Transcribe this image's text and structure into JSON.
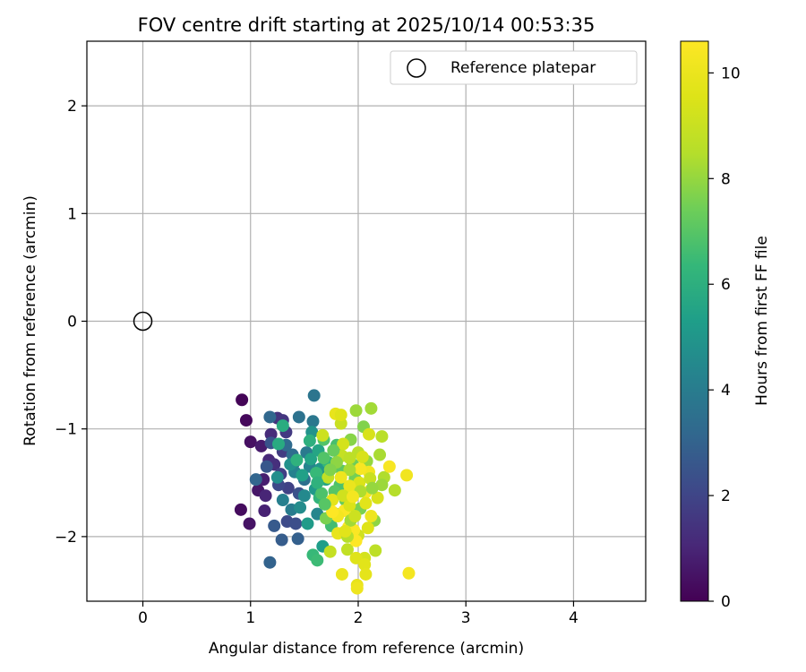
{
  "chart_data": {
    "type": "scatter",
    "title": "FOV centre drift starting at 2025/10/14 00:53:35",
    "xlabel": "Angular distance from reference (arcmin)",
    "ylabel": "Rotation from reference (arcmin)",
    "xlim": [
      -0.52,
      4.67
    ],
    "ylim": [
      -2.6,
      2.6
    ],
    "xticks": [
      0,
      1,
      2,
      3,
      4
    ],
    "xtick_labels": [
      "0",
      "1",
      "2",
      "3",
      "4"
    ],
    "yticks": [
      -2,
      -1,
      0,
      1,
      2
    ],
    "ytick_labels": [
      "−2",
      "−1",
      "0",
      "1",
      "2"
    ],
    "grid": true,
    "legend": {
      "position": "top-right",
      "entries": [
        "Reference platepar"
      ]
    },
    "reference_point": {
      "x": 0,
      "y": 0,
      "label": "Reference platepar",
      "marker": "open-circle"
    },
    "colorbar": {
      "label": "Hours from first FF file",
      "colormap": "viridis",
      "range": [
        0,
        10.6
      ],
      "ticks": [
        0,
        2,
        4,
        6,
        8,
        10
      ],
      "tick_labels": [
        "0",
        "2",
        "4",
        "6",
        "8",
        "10"
      ]
    },
    "points": [
      [
        0.92,
        -0.73,
        0.1
      ],
      [
        0.96,
        -0.92,
        0.2
      ],
      [
        0.91,
        -1.75,
        0.3
      ],
      [
        1.0,
        -1.12,
        0.4
      ],
      [
        0.99,
        -1.88,
        0.5
      ],
      [
        1.07,
        -1.57,
        0.6
      ],
      [
        1.1,
        -1.16,
        0.7
      ],
      [
        1.12,
        -1.47,
        0.8
      ],
      [
        1.13,
        -1.76,
        0.9
      ],
      [
        1.14,
        -1.62,
        1.0
      ],
      [
        1.17,
        -1.29,
        1.1
      ],
      [
        1.19,
        -1.05,
        1.2
      ],
      [
        1.22,
        -1.33,
        1.3
      ],
      [
        1.25,
        -0.9,
        1.4
      ],
      [
        1.3,
        -0.92,
        1.5
      ],
      [
        1.33,
        -1.03,
        1.6
      ],
      [
        1.3,
        -1.21,
        1.7
      ],
      [
        1.28,
        -1.42,
        1.8
      ],
      [
        1.35,
        -1.55,
        1.9
      ],
      [
        1.4,
        -1.32,
        2.0
      ],
      [
        1.26,
        -1.52,
        2.1
      ],
      [
        1.34,
        -1.86,
        2.2
      ],
      [
        1.42,
        -1.88,
        2.3
      ],
      [
        1.45,
        -1.6,
        2.4
      ],
      [
        1.19,
        -1.13,
        2.5
      ],
      [
        1.15,
        -1.35,
        2.6
      ],
      [
        1.22,
        -1.9,
        2.7
      ],
      [
        1.29,
        -2.03,
        2.8
      ],
      [
        1.44,
        -2.02,
        2.9
      ],
      [
        1.18,
        -2.24,
        3.0
      ],
      [
        1.05,
        -1.47,
        3.1
      ],
      [
        1.18,
        -0.89,
        3.2
      ],
      [
        1.33,
        -1.15,
        3.3
      ],
      [
        1.39,
        -1.24,
        3.4
      ],
      [
        1.5,
        -1.47,
        3.5
      ],
      [
        1.45,
        -0.89,
        3.6
      ],
      [
        1.59,
        -0.69,
        3.7
      ],
      [
        1.58,
        -0.93,
        3.8
      ],
      [
        1.52,
        -1.22,
        3.9
      ],
      [
        1.38,
        -1.75,
        4.0
      ],
      [
        1.3,
        -1.66,
        4.1
      ],
      [
        1.41,
        -1.4,
        4.2
      ],
      [
        1.55,
        -1.35,
        4.3
      ],
      [
        1.62,
        -1.79,
        4.4
      ],
      [
        1.5,
        -1.62,
        4.5
      ],
      [
        1.46,
        -1.73,
        4.6
      ],
      [
        1.25,
        -1.45,
        4.7
      ],
      [
        1.37,
        -1.33,
        4.8
      ],
      [
        1.57,
        -1.03,
        4.9
      ],
      [
        1.65,
        -1.37,
        5.0
      ],
      [
        1.6,
        -1.56,
        5.1
      ],
      [
        1.53,
        -1.88,
        5.2
      ],
      [
        1.67,
        -2.09,
        5.3
      ],
      [
        1.48,
        -1.43,
        5.4
      ],
      [
        1.56,
        -1.28,
        5.5
      ],
      [
        1.63,
        -1.2,
        5.6
      ],
      [
        1.7,
        -1.47,
        5.7
      ],
      [
        1.26,
        -1.14,
        5.8
      ],
      [
        1.3,
        -0.97,
        5.9
      ],
      [
        1.55,
        -1.11,
        6.0
      ],
      [
        1.43,
        -1.29,
        6.1
      ],
      [
        1.64,
        -1.64,
        6.2
      ],
      [
        1.72,
        -1.31,
        6.3
      ],
      [
        1.58,
        -2.17,
        6.4
      ],
      [
        1.62,
        -2.22,
        6.5
      ],
      [
        1.75,
        -1.9,
        6.6
      ],
      [
        1.8,
        -1.15,
        6.7
      ],
      [
        1.83,
        -1.52,
        6.8
      ],
      [
        1.68,
        -1.1,
        6.9
      ],
      [
        1.78,
        -1.58,
        7.0
      ],
      [
        1.85,
        -1.39,
        7.1
      ],
      [
        1.79,
        -1.79,
        7.2
      ],
      [
        1.88,
        -1.66,
        7.3
      ],
      [
        1.95,
        -1.33,
        7.4
      ],
      [
        1.97,
        -1.46,
        7.5
      ],
      [
        2.02,
        -1.74,
        7.6
      ],
      [
        2.05,
        -0.98,
        7.7
      ],
      [
        1.93,
        -1.1,
        7.8
      ],
      [
        2.15,
        -1.85,
        7.9
      ],
      [
        2.08,
        -1.3,
        8.0
      ],
      [
        1.98,
        -0.83,
        8.1
      ],
      [
        2.12,
        -0.81,
        8.2
      ],
      [
        2.2,
        -1.24,
        8.3
      ],
      [
        2.24,
        -1.45,
        8.4
      ],
      [
        2.34,
        -1.57,
        8.5
      ],
      [
        2.22,
        -1.07,
        8.6
      ],
      [
        2.16,
        -2.13,
        8.7
      ],
      [
        1.9,
        -2.12,
        8.8
      ],
      [
        1.74,
        -2.14,
        8.9
      ],
      [
        1.84,
        -0.95,
        9.0
      ],
      [
        1.67,
        -1.06,
        9.1
      ],
      [
        2.0,
        -1.99,
        9.2
      ],
      [
        2.06,
        -2.2,
        9.3
      ],
      [
        2.1,
        -1.05,
        9.4
      ],
      [
        2.01,
        -1.5,
        9.5
      ],
      [
        1.98,
        -2.2,
        9.6
      ],
      [
        2.06,
        -2.26,
        9.7
      ],
      [
        2.07,
        -2.35,
        9.8
      ],
      [
        1.99,
        -2.45,
        9.9
      ],
      [
        1.85,
        -2.35,
        10.0
      ],
      [
        1.99,
        -2.48,
        10.1
      ],
      [
        2.45,
        -1.43,
        10.2
      ],
      [
        2.47,
        -2.34,
        10.3
      ],
      [
        2.07,
        -1.59,
        10.4
      ],
      [
        1.87,
        -1.76,
        10.5
      ],
      [
        1.91,
        -1.91,
        10.5
      ],
      [
        1.96,
        -1.94,
        10.5
      ],
      [
        1.98,
        -2.04,
        10.6
      ],
      [
        1.81,
        -1.81,
        10.3
      ],
      [
        2.29,
        -1.35,
        10.4
      ],
      [
        2.1,
        -1.4,
        10.2
      ],
      [
        1.79,
        -0.86,
        9.9
      ],
      [
        1.84,
        -0.87,
        9.6
      ],
      [
        1.86,
        -1.14,
        9.3
      ],
      [
        1.85,
        -1.25,
        8.9
      ],
      [
        1.92,
        -1.53,
        10.0
      ],
      [
        1.76,
        -1.66,
        9.8
      ],
      [
        2.02,
        -1.37,
        10.4
      ],
      [
        2.12,
        -1.81,
        10.1
      ],
      [
        2.07,
        -1.69,
        9.7
      ],
      [
        1.92,
        -1.71,
        9.5
      ],
      [
        1.86,
        -1.62,
        9.2
      ],
      [
        1.72,
        -1.45,
        8.8
      ],
      [
        2.0,
        -1.22,
        8.6
      ],
      [
        1.92,
        -1.38,
        8.3
      ],
      [
        1.8,
        -1.31,
        7.9
      ],
      [
        1.7,
        -1.83,
        7.6
      ],
      [
        1.93,
        -1.85,
        8.2
      ],
      [
        2.11,
        -1.46,
        9.0
      ],
      [
        2.18,
        -1.64,
        9.4
      ],
      [
        2.22,
        -1.52,
        8.1
      ],
      [
        2.09,
        -1.92,
        9.6
      ],
      [
        1.81,
        -1.97,
        9.9
      ],
      [
        1.76,
        -1.77,
        10.6
      ],
      [
        1.9,
        -2.0,
        8.5
      ],
      [
        1.77,
        -1.2,
        7.3
      ],
      [
        1.68,
        -1.27,
        6.9
      ],
      [
        1.61,
        -1.41,
        6.4
      ],
      [
        1.66,
        -1.6,
        6.8
      ],
      [
        1.74,
        -1.38,
        7.7
      ],
      [
        1.92,
        -1.27,
        8.7
      ],
      [
        2.02,
        -1.58,
        8.4
      ],
      [
        1.97,
        -1.81,
        9.1
      ],
      [
        1.62,
        -1.5,
        6.1
      ],
      [
        1.69,
        -1.7,
        7.0
      ],
      [
        1.84,
        -1.45,
        10.1
      ],
      [
        1.95,
        -1.63,
        10.3
      ],
      [
        2.04,
        -1.26,
        9.4
      ],
      [
        2.13,
        -1.55,
        8.0
      ],
      [
        1.88,
        -1.95,
        9.7
      ]
    ]
  }
}
